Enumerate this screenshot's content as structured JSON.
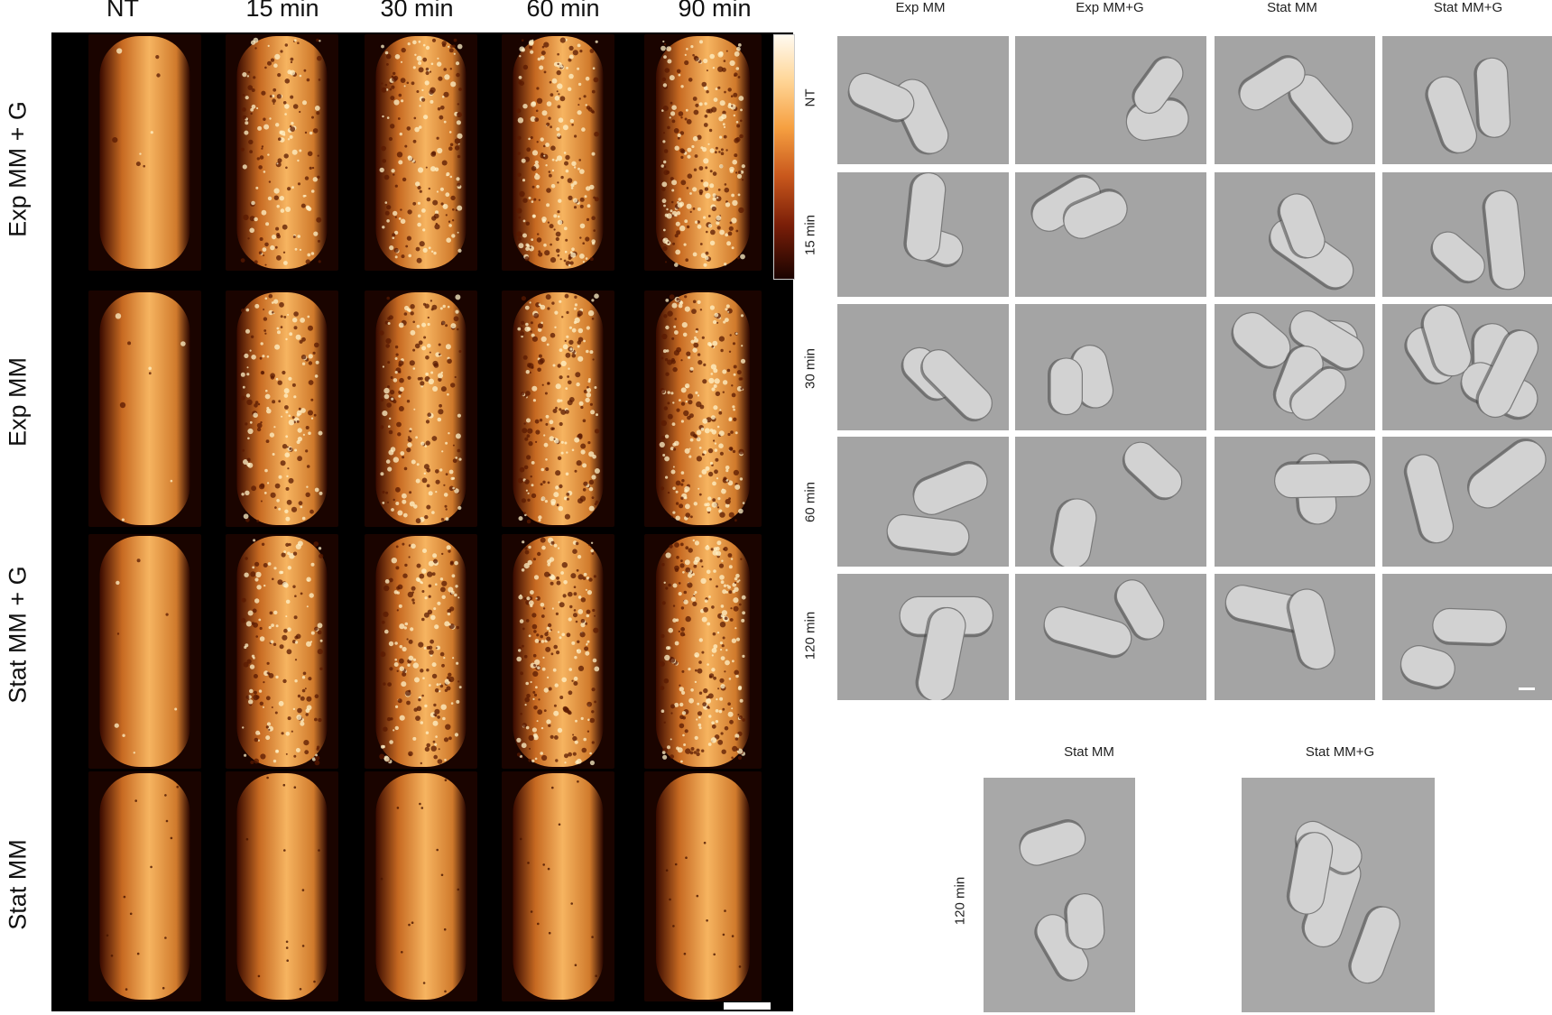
{
  "afm": {
    "column_labels": [
      "NT",
      "15 min",
      "30 min",
      "60 min",
      "90 min"
    ],
    "row_labels": [
      "Exp MM + G",
      "Exp MM",
      "Stat MM + G",
      "Stat MM"
    ],
    "colorbar_colors": [
      "#fffaf0",
      "#f6a041",
      "#7a1e08",
      "#1a0300"
    ]
  },
  "sem_grid": {
    "column_labels": [
      "Exp MM",
      "Exp MM+G",
      "Stat MM",
      "Stat MM+G"
    ],
    "row_labels": [
      "NT",
      "15 min",
      "30 min",
      "60 min",
      "120 min"
    ]
  },
  "sem_detail": {
    "column_labels": [
      "Stat MM",
      "Stat MM+G"
    ],
    "row_label": "120 min"
  }
}
